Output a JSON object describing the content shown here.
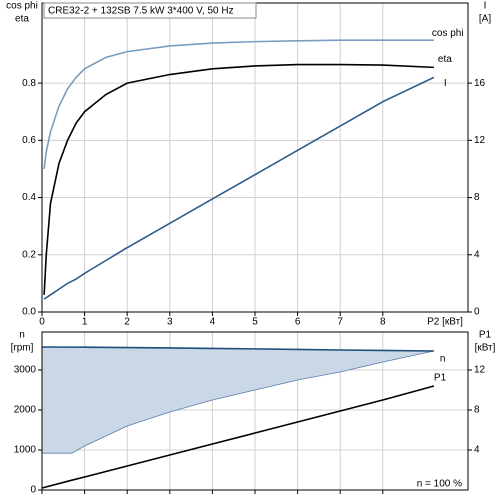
{
  "chart_data": [
    {
      "type": "line",
      "title": "CRE32-2 + 132SB   7.5 kW   3*400 V, 50 Hz",
      "y_label": [
        "cos phi",
        "eta"
      ],
      "y2_label": [
        "I",
        "[A]"
      ],
      "x_label": "P2 [кВт]",
      "x": [
        0.05,
        0.1,
        0.2,
        0.4,
        0.6,
        0.8,
        1,
        1.5,
        2,
        3,
        4,
        5,
        6,
        7,
        8,
        9.2
      ],
      "xlim": [
        0,
        10
      ],
      "xticks": [
        0,
        1,
        2,
        3,
        4,
        5,
        6,
        7,
        8
      ],
      "x_tick_labels": true,
      "ylim": [
        0,
        1.08
      ],
      "yticks": [
        {
          "value": 0,
          "label": "0.0"
        },
        0.2,
        0.4,
        0.6,
        0.8
      ],
      "y2lim": [
        0,
        21.6
      ],
      "y2ticks": [
        0,
        4,
        8,
        12,
        16
      ],
      "grid": true,
      "series": [
        {
          "name": "cos phi",
          "color": "#7a9cc0",
          "values": [
            0.5,
            0.56,
            0.63,
            0.72,
            0.78,
            0.82,
            0.85,
            0.89,
            0.91,
            0.93,
            0.94,
            0.945,
            0.948,
            0.95,
            0.95,
            0.95
          ]
        },
        {
          "name": "eta",
          "color": "#000000",
          "values": [
            0.06,
            0.2,
            0.38,
            0.52,
            0.6,
            0.66,
            0.7,
            0.76,
            0.8,
            0.83,
            0.85,
            0.86,
            0.865,
            0.865,
            0.863,
            0.855
          ]
        },
        {
          "name": "I",
          "color": "#2f5a8a",
          "axis": "y2",
          "values": [
            0.9,
            1.0,
            1.2,
            1.6,
            2.0,
            2.3,
            2.7,
            3.6,
            4.5,
            6.2,
            7.9,
            9.6,
            11.3,
            13.0,
            14.7,
            16.4
          ]
        }
      ]
    },
    {
      "type": "line",
      "y_label": [
        "n",
        "[rpm]"
      ],
      "y2_label": [
        "P1",
        "[кВт]"
      ],
      "annotation": "n = 100 %",
      "x": [
        0,
        0.7,
        1,
        2,
        3,
        4,
        5,
        6,
        7,
        8,
        9.2
      ],
      "xlim": [
        0,
        10
      ],
      "xticks": [
        0,
        1,
        2,
        3,
        4,
        5,
        6,
        7,
        8
      ],
      "x_tick_labels": false,
      "ylim": [
        0,
        3950
      ],
      "yticks": [
        0,
        1000,
        2000,
        3000
      ],
      "y2lim": [
        0,
        15.8
      ],
      "y2ticks": [
        4,
        8,
        12
      ],
      "grid": true,
      "series": [
        {
          "name": "n",
          "color": "#1f4e79",
          "fill": "#c9d7e6",
          "values": [
            3575,
            3572,
            3570,
            3562,
            3552,
            3540,
            3528,
            3515,
            3500,
            3490,
            3475
          ],
          "lower": [
            920,
            920,
            1100,
            1600,
            1950,
            2250,
            2500,
            2750,
            2950,
            3200,
            3475
          ]
        },
        {
          "name": "P1",
          "color": "#000000",
          "axis": "y2",
          "values": [
            0.2,
            0.98,
            1.3,
            2.4,
            3.5,
            4.6,
            5.7,
            6.8,
            7.9,
            9.0,
            10.4
          ]
        }
      ]
    }
  ]
}
